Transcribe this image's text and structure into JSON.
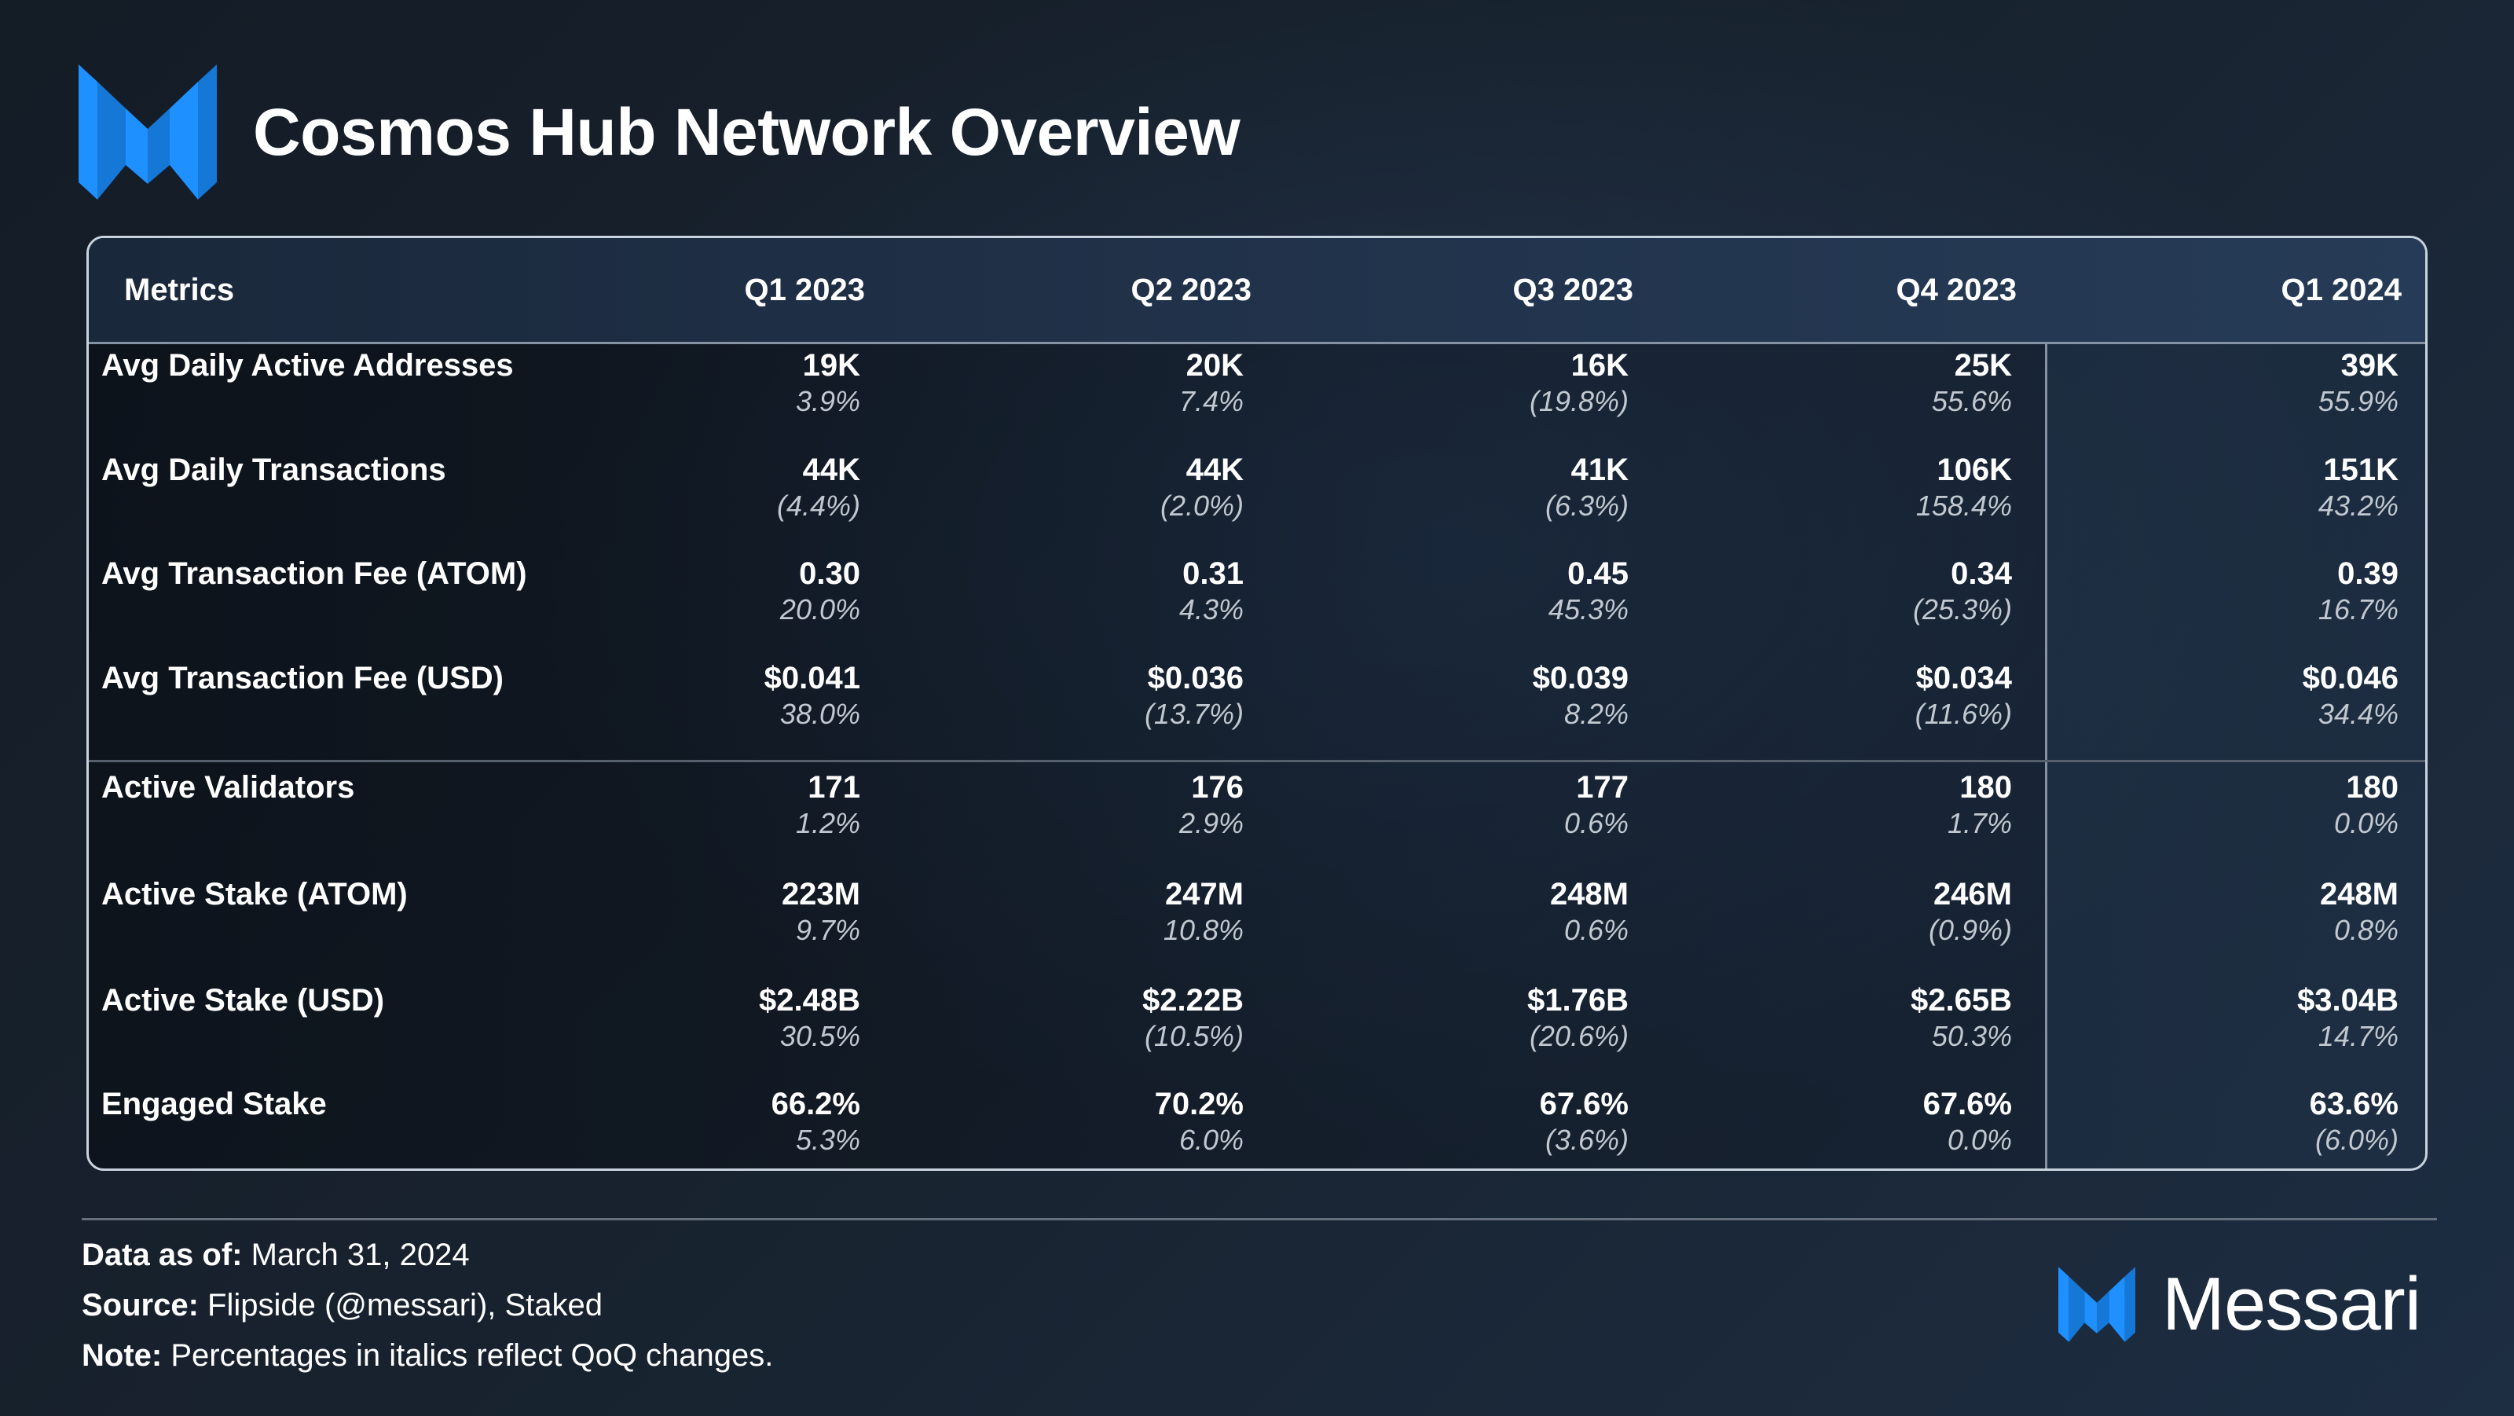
{
  "header": {
    "title": "Cosmos Hub Network Overview",
    "logo_icon": "messari-logo-icon",
    "accent_color": "#1e90ff"
  },
  "chart_data": {
    "type": "table",
    "title": "Cosmos Hub Network Overview",
    "columns": [
      "Metrics",
      "Q1 2023",
      "Q2 2023",
      "Q3 2023",
      "Q4 2023",
      "Q1 2024"
    ],
    "rows": [
      {
        "metric": "Avg Daily Active Addresses",
        "values": [
          "19K",
          "20K",
          "16K",
          "25K",
          "39K"
        ],
        "changes": [
          "3.9%",
          "7.4%",
          "(19.8%)",
          "55.6%",
          "55.9%"
        ]
      },
      {
        "metric": "Avg Daily Transactions",
        "values": [
          "44K",
          "44K",
          "41K",
          "106K",
          "151K"
        ],
        "changes": [
          "(4.4%)",
          "(2.0%)",
          "(6.3%)",
          "158.4%",
          "43.2%"
        ]
      },
      {
        "metric": "Avg Transaction Fee (ATOM)",
        "values": [
          "0.30",
          "0.31",
          "0.45",
          "0.34",
          "0.39"
        ],
        "changes": [
          "20.0%",
          "4.3%",
          "45.3%",
          "(25.3%)",
          "16.7%"
        ]
      },
      {
        "metric": "Avg Transaction Fee (USD)",
        "values": [
          "$0.041",
          "$0.036",
          "$0.039",
          "$0.034",
          "$0.046"
        ],
        "changes": [
          "38.0%",
          "(13.7%)",
          "8.2%",
          "(11.6%)",
          "34.4%"
        ]
      },
      {
        "metric": "Active Validators",
        "values": [
          "171",
          "176",
          "177",
          "180",
          "180"
        ],
        "changes": [
          "1.2%",
          "2.9%",
          "0.6%",
          "1.7%",
          "0.0%"
        ]
      },
      {
        "metric": "Active Stake (ATOM)",
        "values": [
          "223M",
          "247M",
          "248M",
          "246M",
          "248M"
        ],
        "changes": [
          "9.7%",
          "10.8%",
          "0.6%",
          "(0.9%)",
          "0.8%"
        ]
      },
      {
        "metric": "Active Stake (USD)",
        "values": [
          "$2.48B",
          "$2.22B",
          "$1.76B",
          "$2.65B",
          "$3.04B"
        ],
        "changes": [
          "30.5%",
          "(10.5%)",
          "(20.6%)",
          "50.3%",
          "14.7%"
        ]
      },
      {
        "metric": "Engaged Stake",
        "values": [
          "66.2%",
          "70.2%",
          "67.6%",
          "67.6%",
          "63.6%"
        ],
        "changes": [
          "5.3%",
          "6.0%",
          "(3.6%)",
          "0.0%",
          "(6.0%)"
        ]
      }
    ]
  },
  "footer": {
    "data_as_of_label": "Data as of:",
    "data_as_of_value": " March 31, 2024",
    "source_label": "Source:",
    "source_value": " Flipside (@messari), Staked",
    "note_label": "Note:",
    "note_value": " Percentages in italics reflect QoQ changes."
  },
  "brand": {
    "name": "Messari",
    "icon": "messari-logo-icon"
  }
}
